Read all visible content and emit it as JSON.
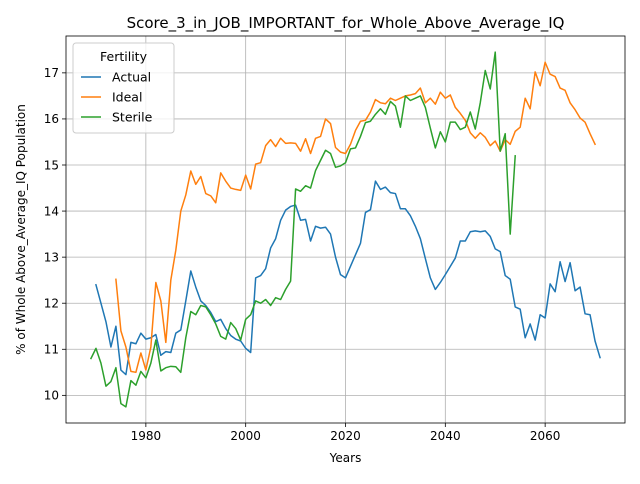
{
  "chart_data": {
    "type": "line",
    "title": "Score_3_in_JOB_IMPORTANT_for_Whole_Above_Average_IQ",
    "xlabel": "Years",
    "ylabel": "% of Whole Above_Average_IQ Population",
    "xlim": [
      1964,
      2076
    ],
    "ylim": [
      9.4,
      17.8
    ],
    "x_ticks": [
      1980,
      2000,
      2020,
      2040,
      2060
    ],
    "y_ticks": [
      10,
      11,
      12,
      13,
      14,
      15,
      16,
      17
    ],
    "grid": true,
    "legend": {
      "title": "Fertility",
      "placement": "top-left"
    },
    "series": [
      {
        "name": "Actual",
        "color": "#1f77b4",
        "x_start": 1970,
        "values": [
          12.4,
          12.0,
          11.6,
          11.05,
          11.5,
          10.55,
          10.45,
          11.15,
          11.12,
          11.35,
          11.22,
          11.25,
          11.32,
          10.87,
          10.95,
          10.93,
          11.35,
          11.42,
          12.05,
          12.7,
          12.35,
          12.05,
          11.95,
          11.8,
          11.6,
          11.65,
          11.45,
          11.3,
          11.22,
          11.18,
          11.02,
          10.93,
          12.55,
          12.6,
          12.75,
          13.2,
          13.4,
          13.8,
          14.02,
          14.1,
          14.13,
          13.8,
          13.82,
          13.35,
          13.67,
          13.63,
          13.65,
          13.5,
          13.0,
          12.62,
          12.55,
          12.8,
          13.05,
          13.3,
          13.97,
          14.03,
          14.65,
          14.47,
          14.52,
          14.4,
          14.38,
          14.05,
          14.05,
          13.9,
          13.67,
          13.4,
          12.97,
          12.55,
          12.3,
          12.45,
          12.62,
          12.8,
          12.98,
          13.35,
          13.35,
          13.55,
          13.57,
          13.55,
          13.57,
          13.45,
          13.18,
          13.12,
          12.6,
          12.52,
          11.92,
          11.87,
          11.25,
          11.55,
          11.2,
          11.75,
          11.68,
          12.42,
          12.25,
          12.9,
          12.47,
          12.88,
          12.27,
          12.35,
          11.77,
          11.75,
          11.18,
          10.82
        ]
      },
      {
        "name": "Ideal",
        "color": "#ff7f0e",
        "x_start": 1974,
        "values": [
          12.52,
          11.4,
          11.05,
          10.52,
          10.5,
          10.92,
          10.55,
          11.05,
          12.45,
          12.05,
          11.15,
          12.5,
          13.15,
          14.0,
          14.35,
          14.87,
          14.58,
          14.75,
          14.38,
          14.33,
          14.18,
          14.83,
          14.65,
          14.5,
          14.47,
          14.45,
          14.78,
          14.48,
          15.02,
          15.05,
          15.42,
          15.55,
          15.4,
          15.58,
          15.47,
          15.48,
          15.47,
          15.3,
          15.57,
          15.25,
          15.58,
          15.62,
          16.0,
          15.9,
          15.38,
          15.28,
          15.25,
          15.45,
          15.75,
          15.95,
          15.97,
          16.15,
          16.42,
          16.35,
          16.33,
          16.45,
          16.4,
          16.45,
          16.5,
          16.52,
          16.55,
          16.67,
          16.35,
          16.45,
          16.32,
          16.58,
          16.45,
          16.52,
          16.25,
          16.12,
          15.97,
          15.7,
          15.58,
          15.7,
          15.6,
          15.42,
          15.52,
          15.3,
          15.55,
          15.45,
          15.73,
          15.82,
          16.45,
          16.22,
          17.02,
          16.72,
          17.23,
          16.97,
          16.92,
          16.67,
          16.62,
          16.35,
          16.2,
          16.02,
          15.93,
          15.68,
          15.45
        ]
      },
      {
        "name": "Sterile",
        "color": "#2ca02c",
        "x_start": 1969,
        "values": [
          10.8,
          11.02,
          10.7,
          10.2,
          10.3,
          10.6,
          9.82,
          9.75,
          10.32,
          10.22,
          10.52,
          10.38,
          10.7,
          11.2,
          10.53,
          10.6,
          10.63,
          10.62,
          10.5,
          11.25,
          11.82,
          11.75,
          11.95,
          11.92,
          11.75,
          11.55,
          11.28,
          11.22,
          11.58,
          11.45,
          11.2,
          11.65,
          11.75,
          12.05,
          12.0,
          12.08,
          11.95,
          12.12,
          12.08,
          12.3,
          12.48,
          14.48,
          14.43,
          14.55,
          14.5,
          14.88,
          15.1,
          15.32,
          15.25,
          14.95,
          14.98,
          15.05,
          15.35,
          15.37,
          15.62,
          15.92,
          15.95,
          16.1,
          16.22,
          16.1,
          16.38,
          16.28,
          15.82,
          16.5,
          16.4,
          16.45,
          16.5,
          16.25,
          15.8,
          15.37,
          15.72,
          15.5,
          15.93,
          15.93,
          15.77,
          15.82,
          16.15,
          15.78,
          16.35,
          17.05,
          16.65,
          17.45,
          15.3,
          15.68,
          13.5,
          15.2
        ]
      }
    ]
  }
}
